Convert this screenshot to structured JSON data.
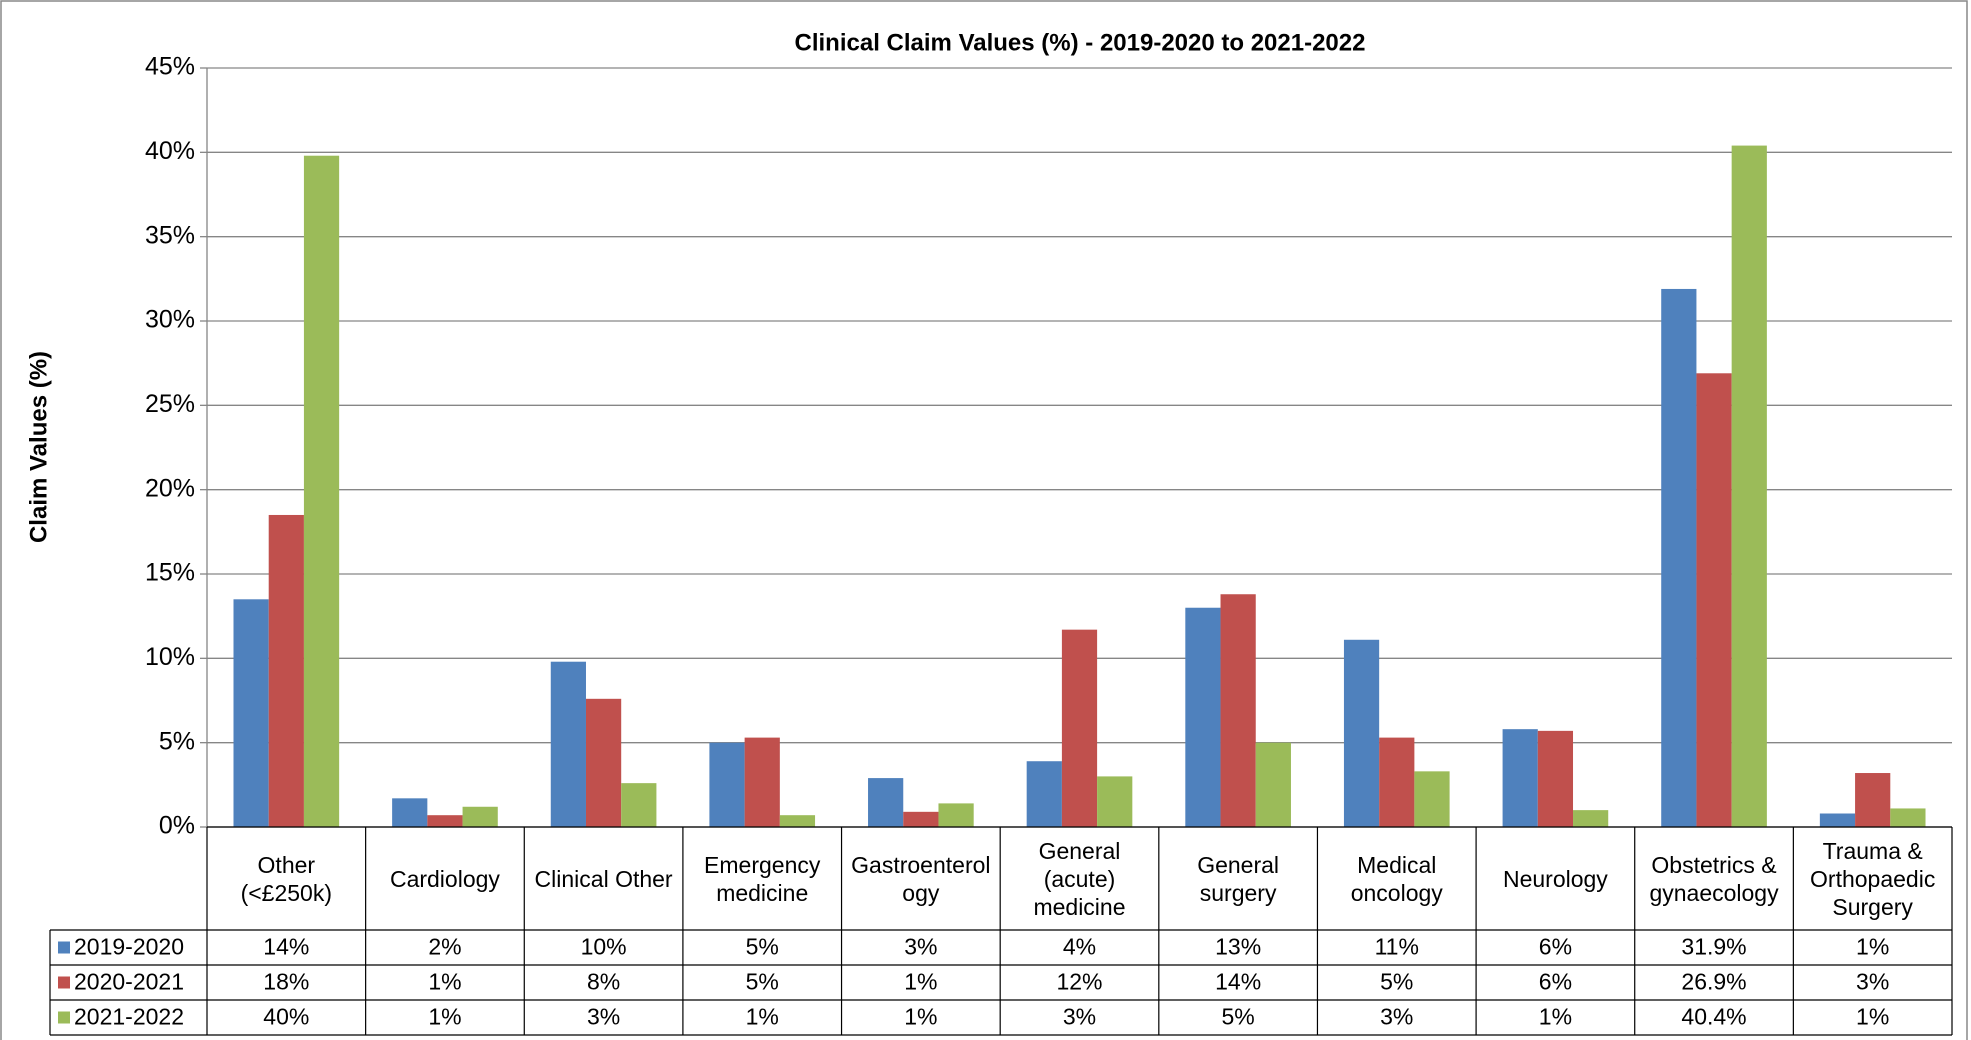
{
  "chart_data": {
    "type": "bar",
    "title": "Clinical Claim Values (%) - 2019-2020 to 2021-2022",
    "y_label": "Claim Values (%)",
    "categories": [
      "Other (<£250k)",
      "Cardiology",
      "Clinical Other",
      "Emergency medicine",
      "Gastroenterology",
      "General (acute) medicine",
      "General surgery",
      "Medical oncology",
      "Neurology",
      "Obstetrics & gynaecology",
      "Trauma & Orthopaedic Surgery"
    ],
    "series": [
      {
        "name": "2019-2020",
        "color": "#4f81bd",
        "values": [
          13.5,
          1.7,
          9.8,
          5.0,
          2.9,
          3.9,
          13.0,
          11.1,
          5.8,
          31.9,
          0.8
        ],
        "value_labels": [
          "14%",
          "2%",
          "10%",
          "5%",
          "3%",
          "4%",
          "13%",
          "11%",
          "6%",
          "31.9%",
          "1%"
        ]
      },
      {
        "name": "2020-2021",
        "color": "#c0504d",
        "values": [
          18.5,
          0.7,
          7.6,
          5.3,
          0.9,
          11.7,
          13.8,
          5.3,
          5.7,
          26.9,
          3.2
        ],
        "value_labels": [
          "18%",
          "1%",
          "8%",
          "5%",
          "1%",
          "12%",
          "14%",
          "5%",
          "6%",
          "26.9%",
          "3%"
        ]
      },
      {
        "name": "2021-2022",
        "color": "#9bbb59",
        "values": [
          39.8,
          1.2,
          2.6,
          0.7,
          1.4,
          3.0,
          5.0,
          3.3,
          1.0,
          40.4,
          1.1
        ],
        "value_labels": [
          "40%",
          "1%",
          "3%",
          "1%",
          "1%",
          "3%",
          "5%",
          "3%",
          "1%",
          "40.4%",
          "1%"
        ]
      }
    ],
    "ylim": [
      0,
      45
    ],
    "yticks": [
      {
        "value": 0,
        "label": "0%"
      },
      {
        "value": 5,
        "label": "5%"
      },
      {
        "value": 10,
        "label": "10%"
      },
      {
        "value": 15,
        "label": "15%"
      },
      {
        "value": 20,
        "label": "20%"
      },
      {
        "value": 25,
        "label": "25%"
      },
      {
        "value": 30,
        "label": "30%"
      },
      {
        "value": 35,
        "label": "35%"
      },
      {
        "value": 40,
        "label": "40%"
      },
      {
        "value": 45,
        "label": "45%"
      }
    ],
    "grid": true
  }
}
